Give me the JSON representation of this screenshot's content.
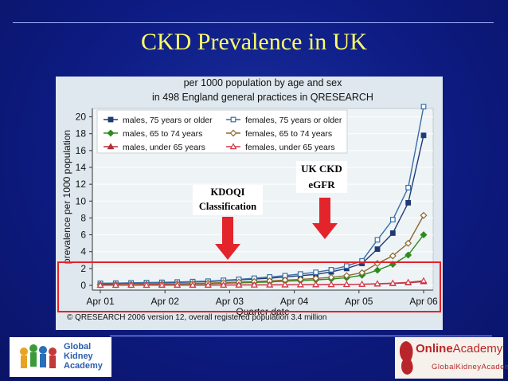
{
  "slide": {
    "title": "CKD Prevalence in UK"
  },
  "callouts": {
    "kdoqi": [
      "KDOQI",
      "Classification"
    ],
    "ukckd": [
      "UK CKD",
      "eGFR"
    ]
  },
  "logos": {
    "left": [
      "Global",
      "Kidney",
      "Academy"
    ],
    "right_top": [
      "Online",
      "Academy"
    ],
    "right_bottom": "GlobalKidneyAcademy"
  },
  "footer": {
    "copyright": "© QRESEARCH 2006 version 12, overall registered population 3.4 million"
  },
  "chart_data": {
    "type": "line",
    "title": [
      "per 1000 population by age and sex",
      "in 498 England general practices in QRESEARCH"
    ],
    "xlabel": "Quarter date",
    "ylabel": "prevalence per 1000 population",
    "ylim": [
      0,
      21
    ],
    "yticks": [
      0,
      2,
      4,
      6,
      8,
      10,
      12,
      14,
      16,
      18,
      20
    ],
    "xticks": [
      "Apr 01",
      "Apr 02",
      "Apr 03",
      "Apr 04",
      "Apr 05",
      "Apr 06"
    ],
    "x_range_quarters": [
      0,
      20
    ],
    "legend": "top-left, two columns",
    "series": [
      {
        "name": "males, 75 years or older",
        "color": "#1f3a73",
        "marker": "square",
        "fill": true,
        "values": [
          0.2,
          0.22,
          0.25,
          0.28,
          0.3,
          0.35,
          0.4,
          0.45,
          0.55,
          0.65,
          0.75,
          0.85,
          1.0,
          1.15,
          1.3,
          1.6,
          2.0,
          2.6,
          4.3,
          6.2,
          9.8,
          17.8
        ]
      },
      {
        "name": "females, 75 years or older",
        "color": "#3a6ea5",
        "marker": "square",
        "fill": false,
        "values": [
          0.25,
          0.27,
          0.3,
          0.33,
          0.36,
          0.4,
          0.45,
          0.5,
          0.6,
          0.72,
          0.85,
          1.0,
          1.15,
          1.35,
          1.55,
          1.85,
          2.3,
          2.9,
          5.4,
          7.8,
          11.6,
          21.2
        ]
      },
      {
        "name": "males, 65 to 74 years",
        "color": "#2e8b1f",
        "marker": "diamond",
        "fill": true,
        "values": [
          0.05,
          0.07,
          0.08,
          0.1,
          0.12,
          0.15,
          0.18,
          0.2,
          0.25,
          0.3,
          0.35,
          0.4,
          0.5,
          0.55,
          0.65,
          0.75,
          0.9,
          1.2,
          1.8,
          2.5,
          3.6,
          6.0
        ]
      },
      {
        "name": "females, 65 to 74 years",
        "color": "#8b6a2e",
        "marker": "diamond",
        "fill": false,
        "values": [
          0.07,
          0.09,
          0.1,
          0.12,
          0.15,
          0.18,
          0.22,
          0.26,
          0.32,
          0.38,
          0.45,
          0.52,
          0.62,
          0.7,
          0.82,
          0.95,
          1.15,
          1.5,
          2.6,
          3.5,
          5.0,
          8.3
        ]
      },
      {
        "name": "males, under 65 years",
        "color": "#b0303a",
        "marker": "triangle",
        "fill": true,
        "values": [
          0.02,
          0.02,
          0.02,
          0.02,
          0.03,
          0.03,
          0.03,
          0.03,
          0.04,
          0.04,
          0.05,
          0.05,
          0.06,
          0.07,
          0.08,
          0.09,
          0.1,
          0.12,
          0.16,
          0.22,
          0.3,
          0.45
        ]
      },
      {
        "name": "females, under 65 years",
        "color": "#d23a4a",
        "marker": "triangle",
        "fill": false,
        "values": [
          0.02,
          0.02,
          0.02,
          0.02,
          0.03,
          0.03,
          0.03,
          0.04,
          0.04,
          0.05,
          0.05,
          0.06,
          0.07,
          0.08,
          0.09,
          0.1,
          0.11,
          0.14,
          0.19,
          0.26,
          0.36,
          0.55
        ]
      }
    ]
  }
}
